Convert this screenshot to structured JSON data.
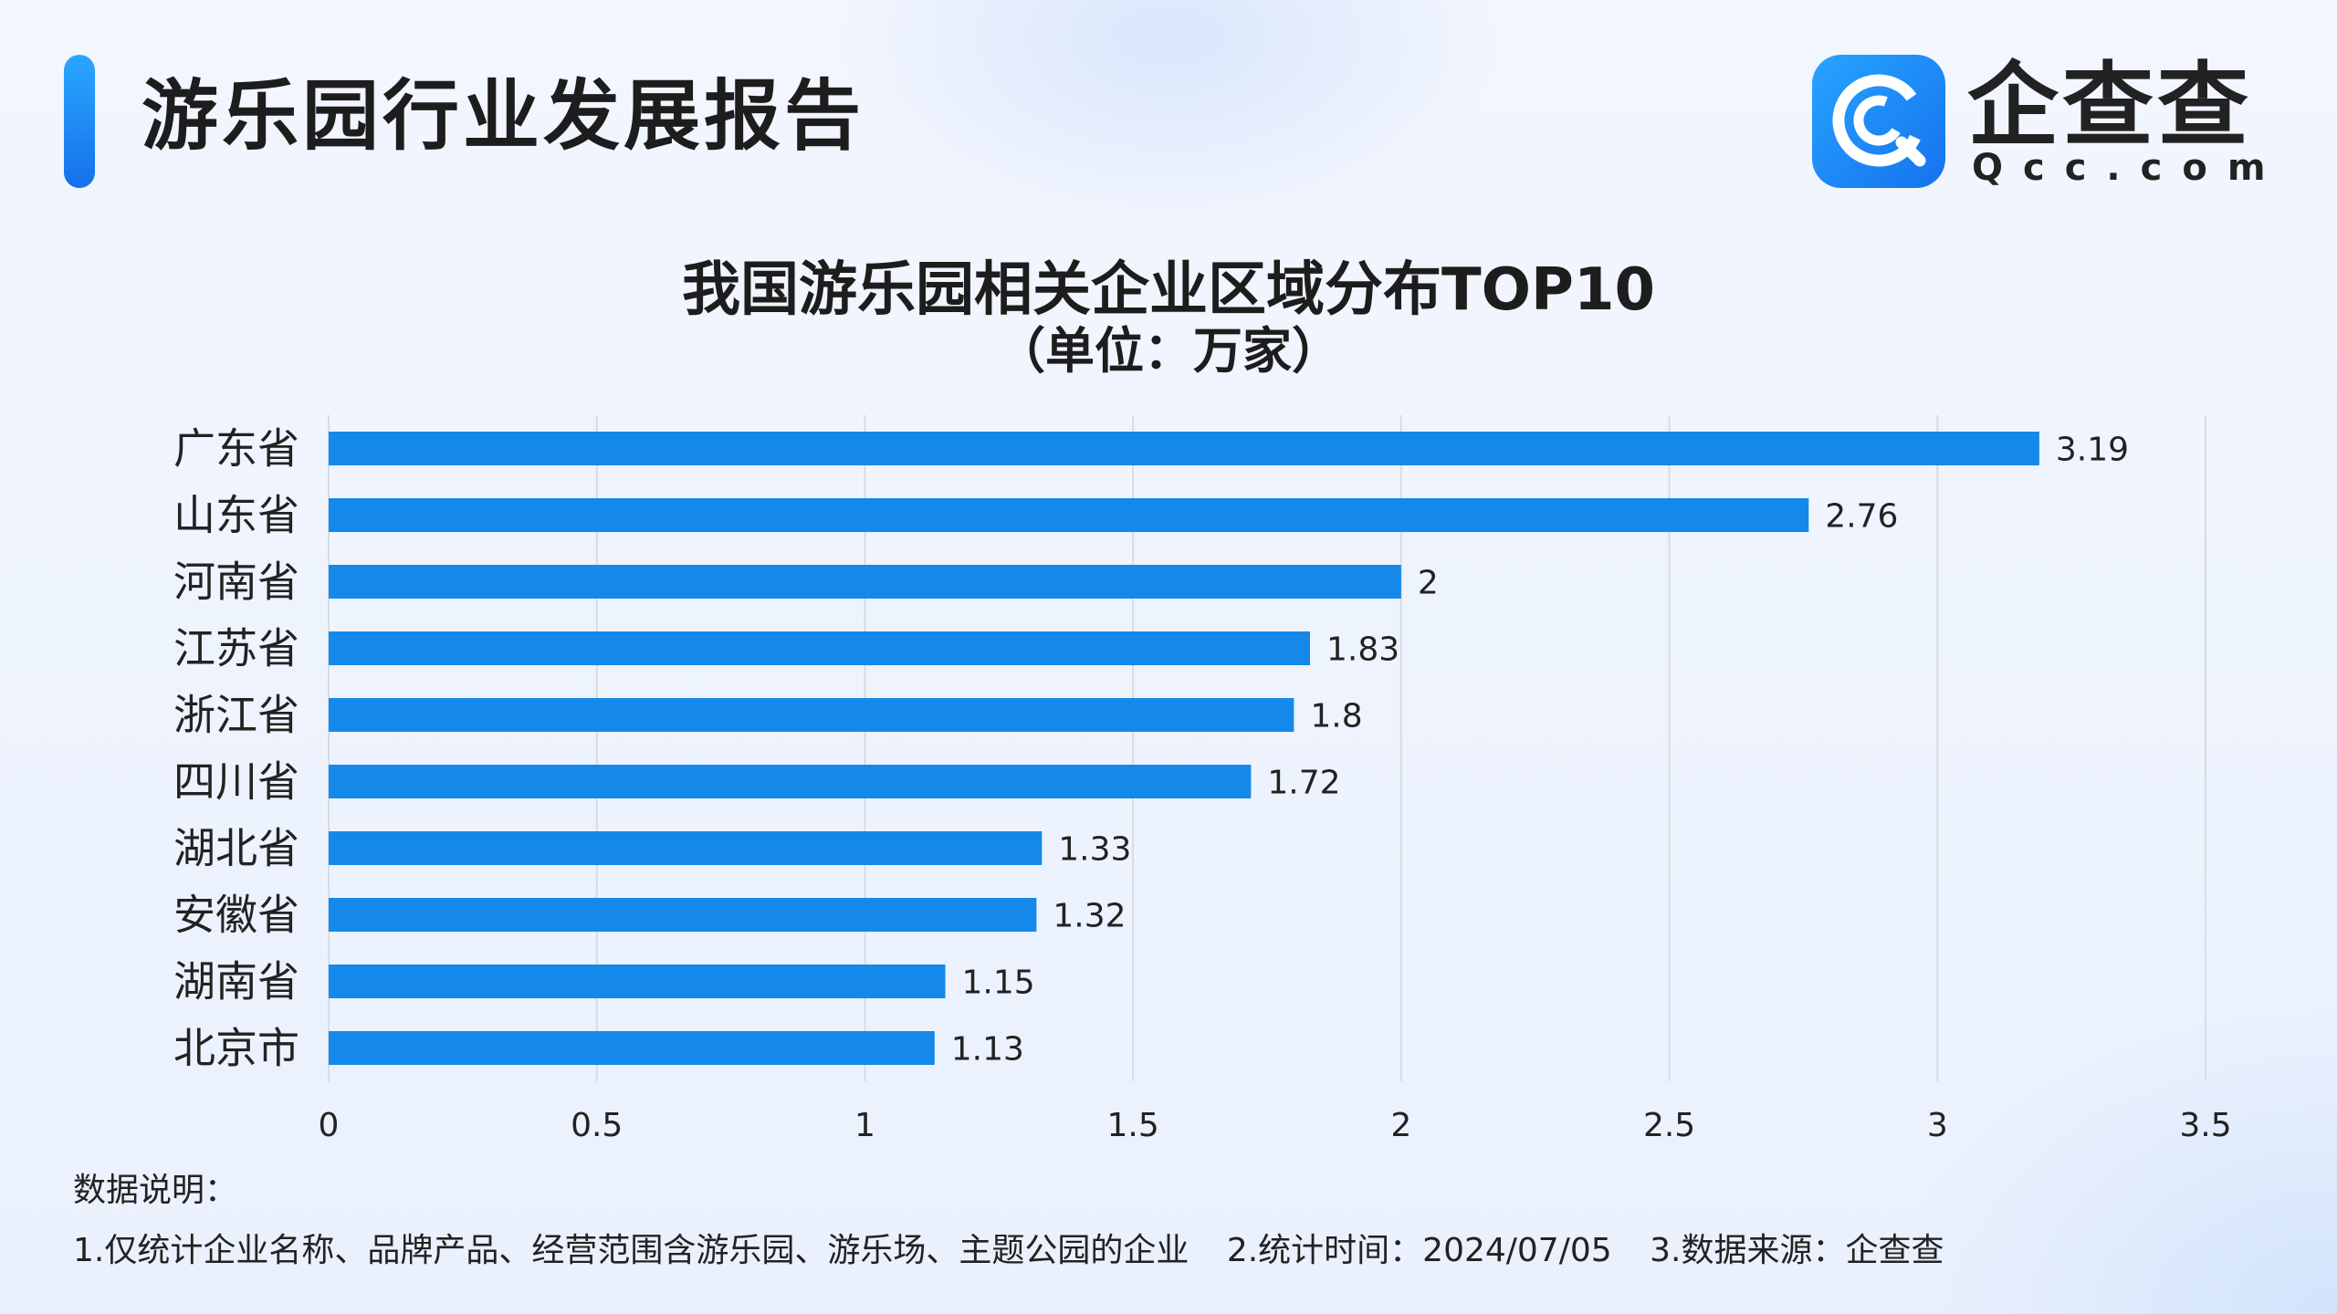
{
  "header": {
    "title": "游乐园行业发展报告"
  },
  "logo": {
    "name": "企查查",
    "sub": "Qcc.com"
  },
  "colors": {
    "bar": "#1589e9",
    "grid": "#d7dce3"
  },
  "chart_data": {
    "type": "bar",
    "orientation": "horizontal",
    "title": "我国游乐园相关企业区域分布TOP10",
    "subtitle": "（单位：万家）",
    "categories": [
      "广东省",
      "山东省",
      "河南省",
      "江苏省",
      "浙江省",
      "四川省",
      "湖北省",
      "安徽省",
      "湖南省",
      "北京市"
    ],
    "values": [
      3.19,
      2.76,
      2,
      1.83,
      1.8,
      1.72,
      1.33,
      1.32,
      1.15,
      1.13
    ],
    "xlim": [
      0,
      3.5
    ],
    "xticks": [
      "0",
      "0.5",
      "1",
      "1.5",
      "2",
      "2.5",
      "3",
      "3.5"
    ],
    "grid": true
  },
  "notes": {
    "title": "数据说明：",
    "items": [
      "1.仅统计企业名称、品牌产品、经营范围含游乐园、游乐场、主题公园的企业",
      "2.统计时间：2024/07/05",
      "3.数据来源：企查查"
    ]
  }
}
